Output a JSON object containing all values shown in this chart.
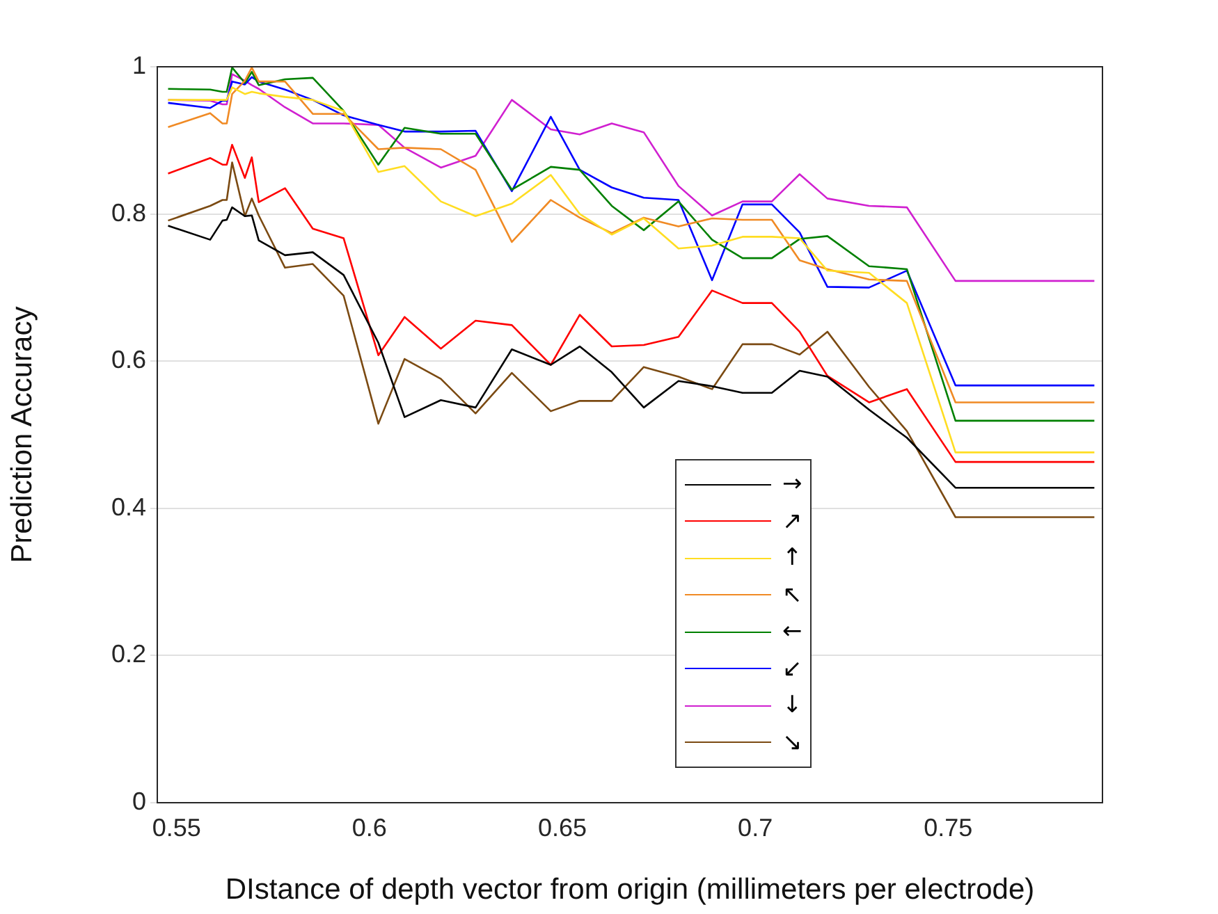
{
  "chart_data": {
    "type": "line",
    "xlabel": "DIstance of depth vector from origin (millimeters per electrode)",
    "ylabel": "Prediction Accuracy",
    "x": [
      0.5478,
      0.5587,
      0.5619,
      0.563,
      0.5644,
      0.5677,
      0.5695,
      0.5713,
      0.5781,
      0.5853,
      0.5933,
      0.6023,
      0.6091,
      0.6185,
      0.6275,
      0.6369,
      0.647,
      0.6545,
      0.6628,
      0.6711,
      0.6801,
      0.6888,
      0.6967,
      0.7043,
      0.7115,
      0.7187,
      0.7295,
      0.7393,
      0.7519,
      0.7879
    ],
    "xlim": [
      0.545,
      0.79
    ],
    "xticks": [
      0.55,
      0.6,
      0.65,
      0.7,
      0.75
    ],
    "ylim": [
      0,
      1
    ],
    "yticks": [
      0,
      0.2,
      0.4,
      0.6,
      0.8,
      1
    ],
    "grid": "y",
    "legend": "bottom",
    "marker": "none",
    "line_style": "solid",
    "series": [
      {
        "name": "→",
        "color": "#000000",
        "values": [
          0.784,
          0.765,
          0.791,
          0.792,
          0.809,
          0.797,
          0.798,
          0.764,
          0.744,
          0.748,
          0.717,
          0.625,
          0.524,
          0.547,
          0.537,
          0.616,
          0.595,
          0.62,
          0.585,
          0.537,
          0.573,
          0.566,
          0.557,
          0.557,
          0.587,
          0.579,
          0.534,
          0.496,
          0.428,
          0.428
        ]
      },
      {
        "name": "↗",
        "color": "#ff0000",
        "values": [
          0.855,
          0.876,
          0.867,
          0.867,
          0.894,
          0.849,
          0.877,
          0.816,
          0.835,
          0.78,
          0.767,
          0.608,
          0.66,
          0.617,
          0.655,
          0.649,
          0.595,
          0.663,
          0.62,
          0.622,
          0.633,
          0.696,
          0.679,
          0.679,
          0.64,
          0.58,
          0.544,
          0.562,
          0.463,
          0.463
        ]
      },
      {
        "name": "↑",
        "color": "#ffdd22",
        "values": [
          0.955,
          0.955,
          0.955,
          0.955,
          0.972,
          0.963,
          0.966,
          0.964,
          0.959,
          0.955,
          0.94,
          0.857,
          0.865,
          0.817,
          0.797,
          0.814,
          0.853,
          0.8,
          0.772,
          0.794,
          0.753,
          0.757,
          0.769,
          0.769,
          0.767,
          0.723,
          0.72,
          0.679,
          0.476,
          0.476
        ]
      },
      {
        "name": "↖",
        "color": "#f08a24",
        "values": [
          0.918,
          0.937,
          0.923,
          0.923,
          0.963,
          0.981,
          0.999,
          0.98,
          0.98,
          0.936,
          0.936,
          0.888,
          0.89,
          0.888,
          0.86,
          0.762,
          0.819,
          0.795,
          0.774,
          0.795,
          0.783,
          0.794,
          0.792,
          0.792,
          0.737,
          0.725,
          0.711,
          0.709,
          0.544,
          0.544
        ]
      },
      {
        "name": "←",
        "color": "#008000",
        "values": [
          0.97,
          0.969,
          0.966,
          0.966,
          0.999,
          0.978,
          0.993,
          0.975,
          0.983,
          0.985,
          0.94,
          0.867,
          0.917,
          0.909,
          0.909,
          0.833,
          0.864,
          0.86,
          0.811,
          0.778,
          0.817,
          0.765,
          0.74,
          0.74,
          0.766,
          0.77,
          0.729,
          0.725,
          0.519,
          0.519
        ]
      },
      {
        "name": "↙",
        "color": "#0000ff",
        "values": [
          0.951,
          0.944,
          0.954,
          0.954,
          0.98,
          0.976,
          0.986,
          0.98,
          0.969,
          0.955,
          0.934,
          0.921,
          0.912,
          0.912,
          0.913,
          0.831,
          0.932,
          0.86,
          0.836,
          0.822,
          0.819,
          0.71,
          0.813,
          0.813,
          0.775,
          0.701,
          0.7,
          0.723,
          0.567,
          0.567
        ]
      },
      {
        "name": "↓",
        "color": "#d020d0",
        "values": [
          0.955,
          0.954,
          0.949,
          0.949,
          0.99,
          0.981,
          0.975,
          0.97,
          0.945,
          0.923,
          0.923,
          0.921,
          0.89,
          0.863,
          0.879,
          0.955,
          0.915,
          0.908,
          0.923,
          0.911,
          0.838,
          0.798,
          0.817,
          0.817,
          0.854,
          0.821,
          0.811,
          0.809,
          0.709,
          0.709
        ]
      },
      {
        "name": "↘",
        "color": "#7b4a12",
        "values": [
          0.791,
          0.811,
          0.819,
          0.819,
          0.87,
          0.797,
          0.821,
          0.798,
          0.727,
          0.732,
          0.689,
          0.515,
          0.603,
          0.576,
          0.529,
          0.584,
          0.532,
          0.546,
          0.546,
          0.592,
          0.579,
          0.562,
          0.623,
          0.623,
          0.609,
          0.64,
          0.565,
          0.505,
          0.388,
          0.388
        ]
      }
    ]
  }
}
